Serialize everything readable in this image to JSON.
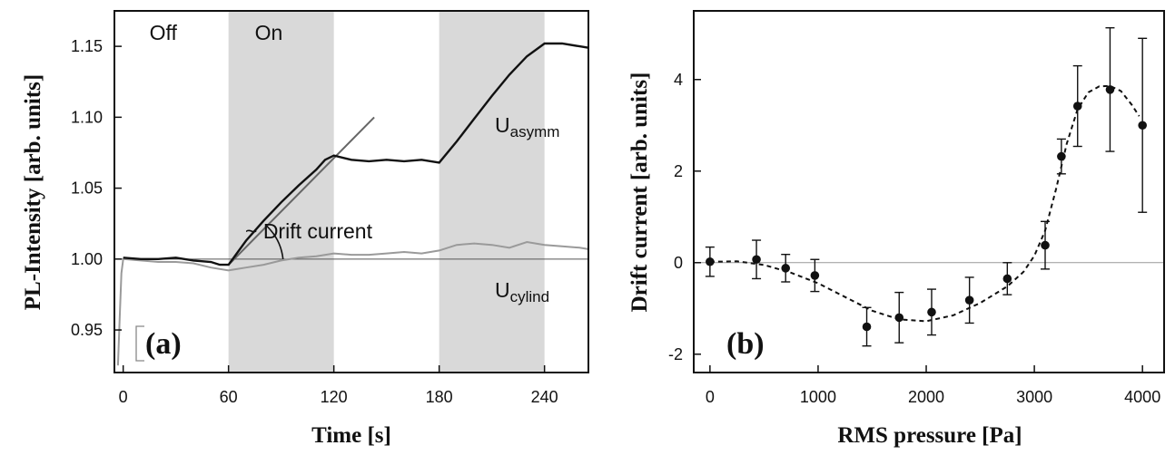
{
  "chart_data": [
    {
      "panel": "(a)",
      "type": "line",
      "xlabel": "Time [s]",
      "ylabel": "PL-Intensity [arb. units]",
      "xlim": [
        -5,
        265
      ],
      "ylim": [
        0.92,
        1.175
      ],
      "xticks": [
        0,
        60,
        120,
        180,
        240
      ],
      "yticks": [
        0.95,
        1.0,
        1.05,
        1.1,
        1.15
      ],
      "xtick_labels": [
        "0",
        "60",
        "120",
        "180",
        "240"
      ],
      "ytick_labels": [
        "0.95",
        "1.00",
        "1.05",
        "1.10",
        "1.15"
      ],
      "shaded_x_ranges": [
        [
          60,
          120
        ],
        [
          180,
          240
        ]
      ],
      "shaded_color": "#d9d9d9",
      "region_labels": [
        {
          "text": "Off",
          "x": 15
        },
        {
          "text": "On",
          "x": 75
        }
      ],
      "reference_line_y": 1.0,
      "series": [
        {
          "key": "asymm",
          "label_main": "U",
          "label_sub": "asymm",
          "color": "#111111",
          "points": [
            [
              0,
              1.001
            ],
            [
              10,
              1.0
            ],
            [
              20,
              1.0
            ],
            [
              30,
              1.001
            ],
            [
              40,
              0.999
            ],
            [
              50,
              0.998
            ],
            [
              55,
              0.996
            ],
            [
              60,
              0.996
            ],
            [
              70,
              1.013
            ],
            [
              80,
              1.027
            ],
            [
              90,
              1.04
            ],
            [
              100,
              1.052
            ],
            [
              110,
              1.063
            ],
            [
              115,
              1.07
            ],
            [
              120,
              1.073
            ],
            [
              130,
              1.07
            ],
            [
              140,
              1.069
            ],
            [
              150,
              1.07
            ],
            [
              160,
              1.069
            ],
            [
              170,
              1.07
            ],
            [
              180,
              1.068
            ],
            [
              190,
              1.083
            ],
            [
              200,
              1.099
            ],
            [
              210,
              1.115
            ],
            [
              220,
              1.13
            ],
            [
              230,
              1.143
            ],
            [
              240,
              1.152
            ],
            [
              250,
              1.152
            ],
            [
              260,
              1.15
            ],
            [
              265,
              1.149
            ]
          ]
        },
        {
          "key": "cylind",
          "label_main": "U",
          "label_sub": "cylind",
          "color": "#9a9a9a",
          "points": [
            [
              -3,
              0.925
            ],
            [
              -2,
              0.958
            ],
            [
              -1,
              0.99
            ],
            [
              0,
              1.0
            ],
            [
              10,
              0.999
            ],
            [
              20,
              0.998
            ],
            [
              30,
              0.998
            ],
            [
              40,
              0.997
            ],
            [
              50,
              0.994
            ],
            [
              60,
              0.992
            ],
            [
              70,
              0.994
            ],
            [
              80,
              0.996
            ],
            [
              90,
              0.999
            ],
            [
              100,
              1.001
            ],
            [
              110,
              1.002
            ],
            [
              120,
              1.004
            ],
            [
              130,
              1.003
            ],
            [
              140,
              1.003
            ],
            [
              150,
              1.004
            ],
            [
              160,
              1.005
            ],
            [
              170,
              1.004
            ],
            [
              180,
              1.006
            ],
            [
              190,
              1.01
            ],
            [
              200,
              1.011
            ],
            [
              210,
              1.01
            ],
            [
              220,
              1.008
            ],
            [
              230,
              1.012
            ],
            [
              240,
              1.01
            ],
            [
              250,
              1.009
            ],
            [
              260,
              1.008
            ],
            [
              265,
              1.007
            ]
          ]
        }
      ],
      "fit_line": {
        "x": [
          60,
          143
        ],
        "y": [
          0.996,
          1.1
        ],
        "color": "#666666"
      },
      "annotation": "~ Drift current"
    },
    {
      "panel": "(b)",
      "type": "scatter",
      "xlabel": "RMS pressure [Pa]",
      "ylabel": "Drift current [arb. units]",
      "xlim": [
        -150,
        4200
      ],
      "ylim": [
        -2.4,
        5.5
      ],
      "xticks": [
        0,
        1000,
        2000,
        3000,
        4000
      ],
      "yticks": [
        -2,
        0,
        2,
        4
      ],
      "xtick_labels": [
        "0",
        "1000",
        "2000",
        "3000",
        "4000"
      ],
      "ytick_labels": [
        "-2",
        "0",
        "2",
        "4"
      ],
      "reference_line_y": 0,
      "points": [
        {
          "x": 0,
          "y": 0.02,
          "err": 0.32
        },
        {
          "x": 430,
          "y": 0.07,
          "err": 0.42
        },
        {
          "x": 700,
          "y": -0.12,
          "err": 0.3
        },
        {
          "x": 970,
          "y": -0.28,
          "err": 0.35
        },
        {
          "x": 1450,
          "y": -1.4,
          "err": 0.42
        },
        {
          "x": 1750,
          "y": -1.2,
          "err": 0.55
        },
        {
          "x": 2050,
          "y": -1.08,
          "err": 0.5
        },
        {
          "x": 2400,
          "y": -0.82,
          "err": 0.5
        },
        {
          "x": 2750,
          "y": -0.35,
          "err": 0.35
        },
        {
          "x": 3100,
          "y": 0.38,
          "err": 0.52
        },
        {
          "x": 3250,
          "y": 2.32,
          "err": 0.38
        },
        {
          "x": 3400,
          "y": 3.42,
          "err": 0.88
        },
        {
          "x": 3700,
          "y": 3.78,
          "err": 1.35
        },
        {
          "x": 4000,
          "y": 3.0,
          "err": 1.9
        }
      ],
      "fit_curve": [
        [
          0,
          0.02
        ],
        [
          250,
          0.03
        ],
        [
          500,
          -0.05
        ],
        [
          750,
          -0.22
        ],
        [
          1000,
          -0.45
        ],
        [
          1250,
          -0.75
        ],
        [
          1500,
          -1.05
        ],
        [
          1750,
          -1.24
        ],
        [
          2000,
          -1.28
        ],
        [
          2250,
          -1.15
        ],
        [
          2500,
          -0.88
        ],
        [
          2750,
          -0.52
        ],
        [
          2900,
          -0.2
        ],
        [
          3000,
          0.15
        ],
        [
          3100,
          0.7
        ],
        [
          3200,
          1.6
        ],
        [
          3300,
          2.6
        ],
        [
          3400,
          3.35
        ],
        [
          3500,
          3.72
        ],
        [
          3600,
          3.85
        ],
        [
          3700,
          3.86
        ],
        [
          3800,
          3.75
        ],
        [
          3900,
          3.45
        ],
        [
          3970,
          3.2
        ]
      ],
      "panel_label_note": "(b)"
    }
  ]
}
